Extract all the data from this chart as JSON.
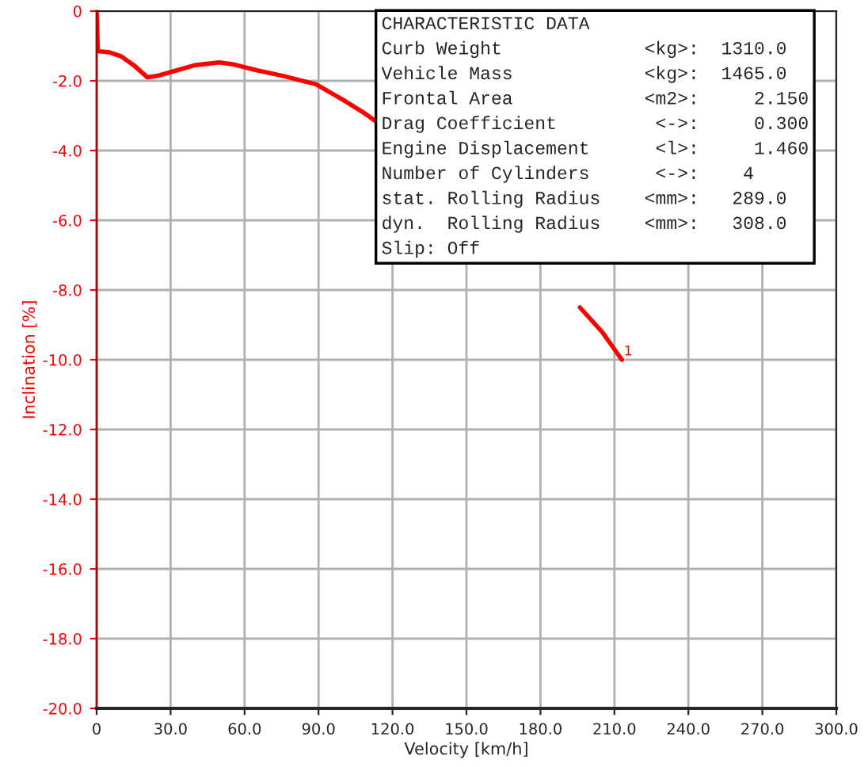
{
  "chart_data": {
    "type": "line",
    "xlabel": "Velocity [km/h]",
    "ylabel": "Inclination [%]",
    "x": [
      0,
      0.5,
      5,
      10,
      15,
      20.6,
      25,
      30,
      40,
      49.7,
      55,
      65,
      75,
      89,
      100,
      108,
      114,
      115,
      196,
      205,
      213
    ],
    "series": [
      {
        "color": "#ff0000",
        "values": [
          0,
          -1.15,
          -1.18,
          -1.3,
          -1.55,
          -1.9,
          -1.85,
          -1.75,
          -1.55,
          -1.47,
          -1.52,
          -1.7,
          -1.85,
          -2.1,
          -2.55,
          -2.9,
          -3.2,
          null,
          -8.5,
          -9.2,
          -10.0
        ]
      }
    ],
    "xlim": [
      0,
      300
    ],
    "xticks": [
      0,
      {
        "value": 30,
        "label": "30.0"
      },
      {
        "value": 60,
        "label": "60.0"
      },
      {
        "value": 90,
        "label": "90.0"
      },
      {
        "value": 120,
        "label": "120.0"
      },
      {
        "value": 150,
        "label": "150.0"
      },
      {
        "value": 180,
        "label": "180.0"
      },
      {
        "value": 210,
        "label": "210.0"
      },
      {
        "value": 240,
        "label": "240.0"
      },
      {
        "value": 270,
        "label": "270.0"
      },
      {
        "value": 300,
        "label": "300.0"
      }
    ],
    "ylim": [
      -20,
      0
    ],
    "yticks": [
      0,
      {
        "value": -2,
        "label": "-2.0"
      },
      {
        "value": -4,
        "label": "-4.0"
      },
      {
        "value": -6,
        "label": "-6.0"
      },
      {
        "value": -8,
        "label": "-8.0"
      },
      {
        "value": -10,
        "label": "-10.0"
      },
      {
        "value": -12,
        "label": "-12.0"
      },
      {
        "value": -14,
        "label": "-14.0"
      },
      {
        "value": -16,
        "label": "-16.0"
      },
      {
        "value": -18,
        "label": "-18.0"
      },
      {
        "value": -20,
        "label": "-20.0"
      }
    ],
    "grid": true,
    "legend": false,
    "marker": "none",
    "line_style": "solid",
    "annotations": [
      "CHARACTERISTIC DATA",
      "Curb Weight             <kg>:  1310.0",
      "Vehicle Mass            <kg>:  1465.0",
      "Frontal Area            <m2>:     2.150",
      "Drag Coefficient         <->:     0.300",
      "Engine Displacement      <l>:     1.460",
      "Number of Cylinders      <->:    4",
      "stat. Rolling Radius    <mm>:   289.0",
      "dyn.  Rolling Radius    <mm>:   308.0",
      "Slip: Off",
      {
        "text": "1",
        "x": 213,
        "y": -10.0
      }
    ]
  }
}
